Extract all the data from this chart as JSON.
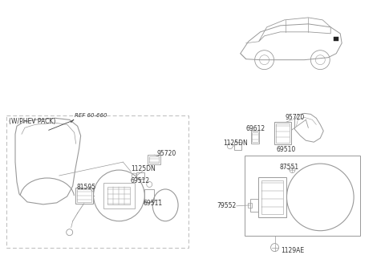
{
  "bg_color": "#ffffff",
  "line_color": "#999999",
  "dark_color": "#444444",
  "text_color": "#333333",
  "fig_width": 4.8,
  "fig_height": 3.18,
  "dpi": 100,
  "labels": {
    "wphev": "(W/PHEV PACK)",
    "ref": "REF 60-660",
    "95720_left": "95720",
    "1125DN_left": "1125DN",
    "81595": "81595",
    "69512_left": "69512",
    "69511": "69511",
    "95720_right": "95720",
    "69612": "69612",
    "1125DN_right": "1125DN",
    "69510": "69510",
    "87551": "87551",
    "79552": "79552",
    "1129AE": "1129AE"
  }
}
